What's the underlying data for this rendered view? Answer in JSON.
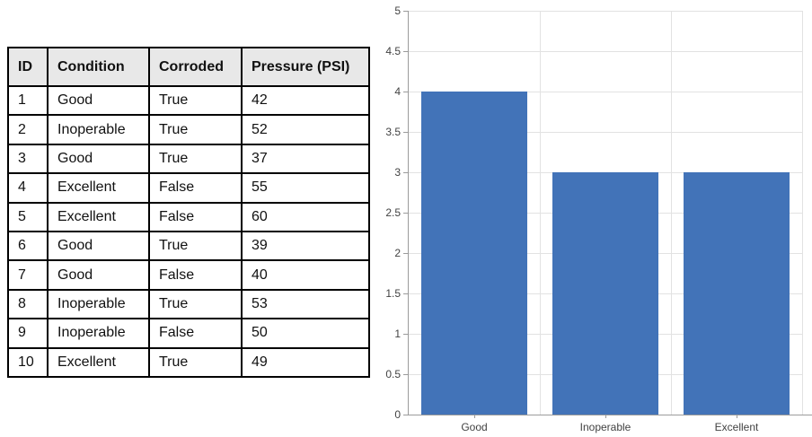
{
  "table": {
    "headers": [
      "ID",
      "Condition",
      "Corroded",
      "Pressure (PSI)"
    ],
    "rows": [
      [
        "1",
        "Good",
        "True",
        "42"
      ],
      [
        "2",
        "Inoperable",
        "True",
        "52"
      ],
      [
        "3",
        "Good",
        "True",
        "37"
      ],
      [
        "4",
        "Excellent",
        "False",
        "55"
      ],
      [
        "5",
        "Excellent",
        "False",
        "60"
      ],
      [
        "6",
        "Good",
        "True",
        "39"
      ],
      [
        "7",
        "Good",
        "False",
        "40"
      ],
      [
        "8",
        "Inoperable",
        "True",
        "53"
      ],
      [
        "9",
        "Inoperable",
        "False",
        "50"
      ],
      [
        "10",
        "Excellent",
        "True",
        "49"
      ]
    ],
    "header_bg": "#E8E8E8",
    "border_color": "#000000"
  },
  "chart_data": {
    "type": "bar",
    "title": "",
    "xlabel": "",
    "ylabel": "",
    "categories": [
      "Good",
      "Inoperable",
      "Excellent"
    ],
    "values": [
      4,
      3,
      3
    ],
    "ylim": [
      0,
      5
    ],
    "y_ticks": [
      0,
      0.5,
      1,
      1.5,
      2,
      2.5,
      3,
      3.5,
      4,
      4.5,
      5
    ],
    "y_tick_labels": [
      "0",
      "0.5",
      "1",
      "1.5",
      "2",
      "2.5",
      "3",
      "3.5",
      "4",
      "4.5",
      "5"
    ],
    "grid": true,
    "legend": false,
    "bar_color": "#4273B8",
    "gridline_color": "#E2E2E2",
    "axis_color": "#9B9B9B",
    "label_color": "#424242"
  }
}
